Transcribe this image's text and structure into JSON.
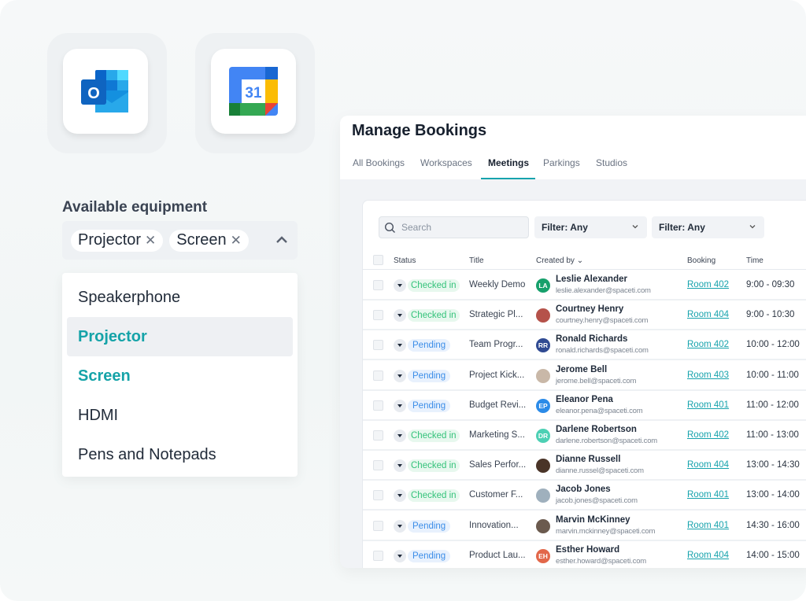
{
  "integrations": [
    {
      "name": "Outlook",
      "icon": "outlook-icon",
      "letter": "O"
    },
    {
      "name": "Google Calendar",
      "icon": "google-calendar-icon",
      "day": "31"
    }
  ],
  "equipment": {
    "label": "Available equipment",
    "selected": [
      "Projector",
      "Screen"
    ],
    "options": [
      {
        "label": "Speakerphone",
        "selected": false
      },
      {
        "label": "Projector",
        "selected": true
      },
      {
        "label": "Screen",
        "selected": true
      },
      {
        "label": "HDMI",
        "selected": false
      },
      {
        "label": "Pens and Notepads",
        "selected": false
      }
    ],
    "accent": "#15a3a8"
  },
  "bookings": {
    "title": "Manage Bookings",
    "tabs": [
      "All Bookings",
      "Workspaces",
      "Meetings",
      "Parkings",
      "Studios"
    ],
    "active_tab": "Meetings",
    "search_placeholder": "Search",
    "filters": [
      "Filter: Any",
      "Filter: Any"
    ],
    "columns": [
      "Status",
      "Title",
      "Created by",
      "Booking",
      "Time"
    ],
    "rows": [
      {
        "status": "Checked in",
        "title": "Weekly Demo",
        "initials": "LA",
        "avatar_color": "#16a06b",
        "name": "Leslie Alexander",
        "email": "leslie.alexander@spaceti.com",
        "booking": "Room 402",
        "time": "9:00 - 09:30"
      },
      {
        "status": "Checked in",
        "title": "Strategic Pl...",
        "initials": "",
        "avatar_color": "#b5524a",
        "name": "Courtney Henry",
        "email": "courtney.henry@spaceti.com",
        "booking": "Room 404",
        "time": "9:00 - 10:30"
      },
      {
        "status": "Pending",
        "title": "Team Progr...",
        "initials": "RR",
        "avatar_color": "#2f4a92",
        "name": "Ronald Richards",
        "email": "ronald.richards@spaceti.com",
        "booking": "Room 402",
        "time": "10:00 - 12:00"
      },
      {
        "status": "Pending",
        "title": "Project Kick...",
        "initials": "",
        "avatar_color": "#c9b8a8",
        "name": "Jerome Bell",
        "email": "jerome.bell@spaceti.com",
        "booking": "Room 403",
        "time": "10:00 - 11:00"
      },
      {
        "status": "Pending",
        "title": "Budget Revi...",
        "initials": "EP",
        "avatar_color": "#2b8be8",
        "name": "Eleanor Pena",
        "email": "eleanor.pena@spaceti.com",
        "booking": "Room 401",
        "time": "11:00 - 12:00"
      },
      {
        "status": "Checked in",
        "title": "Marketing S...",
        "initials": "DR",
        "avatar_color": "#4dd0b4",
        "name": "Darlene Robertson",
        "email": "darlene.robertson@spaceti.com",
        "booking": "Room 402",
        "time": "11:00 - 13:00"
      },
      {
        "status": "Checked in",
        "title": "Sales Perfor...",
        "initials": "",
        "avatar_color": "#4a3428",
        "name": "Dianne Russell",
        "email": "dianne.russel@spaceti.com",
        "booking": "Room 404",
        "time": "13:00 - 14:30"
      },
      {
        "status": "Checked in",
        "title": "Customer F...",
        "initials": "",
        "avatar_color": "#9fb0bd",
        "name": "Jacob Jones",
        "email": "jacob.jones@spaceti.com",
        "booking": "Room 401",
        "time": "13:00 - 14:00"
      },
      {
        "status": "Pending",
        "title": "Innovation...",
        "initials": "",
        "avatar_color": "#6b5a4e",
        "name": "Marvin McKinney",
        "email": "marvin.mckinney@spaceti.com",
        "booking": "Room 401",
        "time": "14:30 - 16:00"
      },
      {
        "status": "Pending",
        "title": "Product Lau...",
        "initials": "EH",
        "avatar_color": "#e2674a",
        "name": "Esther Howard",
        "email": "esther.howard@spaceti.com",
        "booking": "Room 404",
        "time": "14:00 - 15:00"
      }
    ]
  }
}
